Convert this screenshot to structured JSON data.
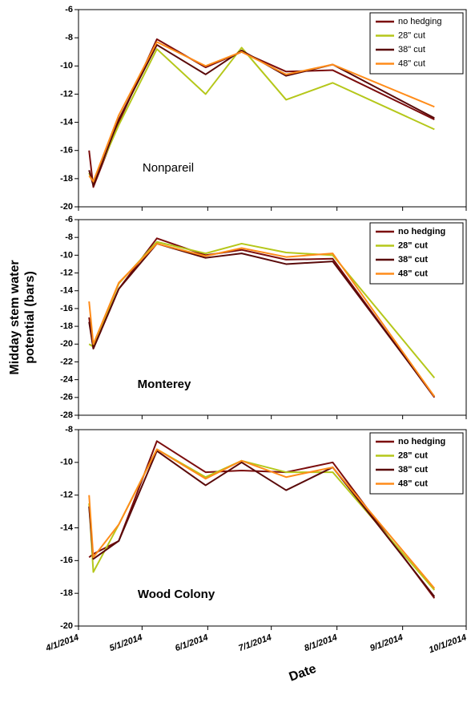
{
  "chart_data": [
    {
      "type": "line",
      "annotation": "Nonpareil",
      "legend": "upper right",
      "x": [
        "2014-04-06",
        "2014-04-08",
        "2014-04-20",
        "2014-05-08",
        "2014-05-31",
        "2014-06-17",
        "2014-07-08",
        "2014-07-30",
        "2014-09-16"
      ],
      "xlim": [
        "2014-04-01",
        "2014-10-01"
      ],
      "ylim": [
        -20,
        -6
      ],
      "yticks": [
        -20,
        -18,
        -16,
        -14,
        -12,
        -10,
        -8,
        -6
      ],
      "series": [
        {
          "name": "no hedging",
          "color": "#7b0d0d",
          "values": [
            -16,
            -18.6,
            -14,
            -8.1,
            -10.1,
            -9.0,
            -10.4,
            -10.3,
            -13.8
          ]
        },
        {
          "name": "28\" cut",
          "color": "#b5c71a",
          "values": [
            -17.6,
            -18.3,
            -14.2,
            -8.8,
            -12.0,
            -8.7,
            -12.4,
            -11.2,
            -14.5
          ]
        },
        {
          "name": "38\" cut",
          "color": "#5a0a0a",
          "values": [
            -17.4,
            -18.5,
            -13.8,
            -8.5,
            -10.6,
            -8.9,
            -10.7,
            -9.9,
            -13.7
          ]
        },
        {
          "name": "48\" cut",
          "color": "#ff8c1a",
          "values": [
            -17.8,
            -18.2,
            -13.5,
            -8.3,
            -10.0,
            -9.0,
            -10.6,
            -9.9,
            -12.9
          ]
        }
      ]
    },
    {
      "type": "line",
      "annotation": "Monterey",
      "legend": "upper right",
      "y_label": "Midday stem water potential (bars)",
      "x": [
        "2014-04-06",
        "2014-04-08",
        "2014-04-20",
        "2014-05-08",
        "2014-05-31",
        "2014-06-17",
        "2014-07-08",
        "2014-07-30",
        "2014-09-16"
      ],
      "xlim": [
        "2014-04-01",
        "2014-10-01"
      ],
      "ylim": [
        -28,
        -6
      ],
      "yticks": [
        -28,
        -26,
        -24,
        -22,
        -20,
        -18,
        -16,
        -14,
        -12,
        -10,
        -8,
        -6
      ],
      "series": [
        {
          "name": "no hedging",
          "color": "#7b0d0d",
          "values": [
            -17,
            -20.5,
            -13.8,
            -8.1,
            -10.0,
            -9.4,
            -10.5,
            -10.4,
            -26
          ]
        },
        {
          "name": "28\" cut",
          "color": "#b5c71a",
          "values": [
            -20,
            -20.3,
            -13.2,
            -8.5,
            -9.8,
            -8.7,
            -9.7,
            -10,
            -23.8
          ]
        },
        {
          "name": "38\" cut",
          "color": "#5a0a0a",
          "values": [
            -17.5,
            -20.5,
            -13.8,
            -8.7,
            -10.3,
            -9.8,
            -11,
            -10.7,
            -25.9
          ]
        },
        {
          "name": "48\" cut",
          "color": "#ff8c1a",
          "values": [
            -15.2,
            -20,
            -13.1,
            -8.7,
            -10.1,
            -9.2,
            -10.2,
            -9.8,
            -25.9
          ]
        }
      ]
    },
    {
      "type": "line",
      "annotation": "Wood Colony",
      "legend": "upper right",
      "x_label": "Date",
      "x": [
        "2014-04-06",
        "2014-04-08",
        "2014-04-20",
        "2014-05-08",
        "2014-05-31",
        "2014-06-17",
        "2014-07-08",
        "2014-07-30",
        "2014-09-16"
      ],
      "xlim": [
        "2014-04-01",
        "2014-10-01"
      ],
      "xticks": [
        {
          "value": "2014-04-01",
          "label": "4/1/2014"
        },
        {
          "value": "2014-05-01",
          "label": "5/1/2014"
        },
        {
          "value": "2014-06-01",
          "label": "6/1/2014"
        },
        {
          "value": "2014-07-01",
          "label": "7/1/2014"
        },
        {
          "value": "2014-08-01",
          "label": "8/1/2014"
        },
        {
          "value": "2014-09-01",
          "label": "9/1/2014"
        },
        {
          "value": "2014-10-01",
          "label": "10/1/2014"
        }
      ],
      "ylim": [
        -20,
        -8
      ],
      "yticks": [
        -20,
        -18,
        -16,
        -14,
        -12,
        -10,
        -8
      ],
      "series": [
        {
          "name": "no hedging",
          "color": "#7b0d0d",
          "values": [
            -15.8,
            -15.6,
            -14.8,
            -8.7,
            -10.6,
            -10.5,
            -10.6,
            -10.0,
            -18.3
          ]
        },
        {
          "name": "28\" cut",
          "color": "#b5c71a",
          "values": [
            -12.5,
            -16.7,
            -13.8,
            -9.2,
            -10.9,
            -9.9,
            -10.6,
            -10.6,
            -17.8
          ]
        },
        {
          "name": "38\" cut",
          "color": "#5a0a0a",
          "values": [
            -12.7,
            -15.9,
            -14.8,
            -9.3,
            -11.4,
            -10.0,
            -11.7,
            -10.3,
            -18.2
          ]
        },
        {
          "name": "48\" cut",
          "color": "#ff8c1a",
          "values": [
            -12.0,
            -15.8,
            -13.8,
            -9.2,
            -11.0,
            -9.9,
            -10.9,
            -10.3,
            -17.7
          ]
        }
      ]
    }
  ]
}
